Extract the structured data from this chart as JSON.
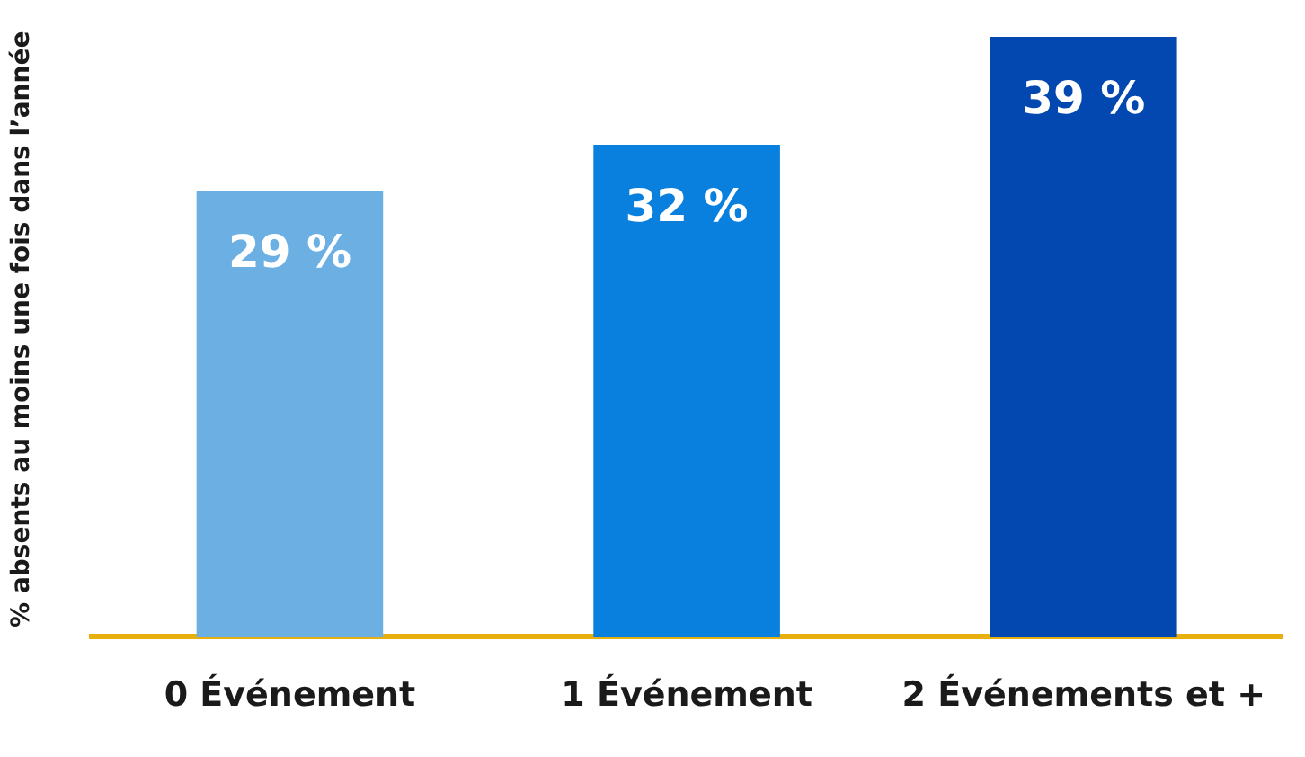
{
  "chart_data": {
    "type": "bar",
    "ylabel": "% absents au moins une fois dans l’année",
    "categories": [
      "0 Événement",
      "1 Événement",
      "2 Événements et +"
    ],
    "values": [
      29,
      32,
      39
    ],
    "colors": [
      "#6cb0e3",
      "#0a80de",
      "#0347b0"
    ],
    "value_labels": [
      "29 %",
      "32 %",
      "39 %"
    ],
    "tick_labels": "x",
    "grid": false,
    "legend": false
  }
}
